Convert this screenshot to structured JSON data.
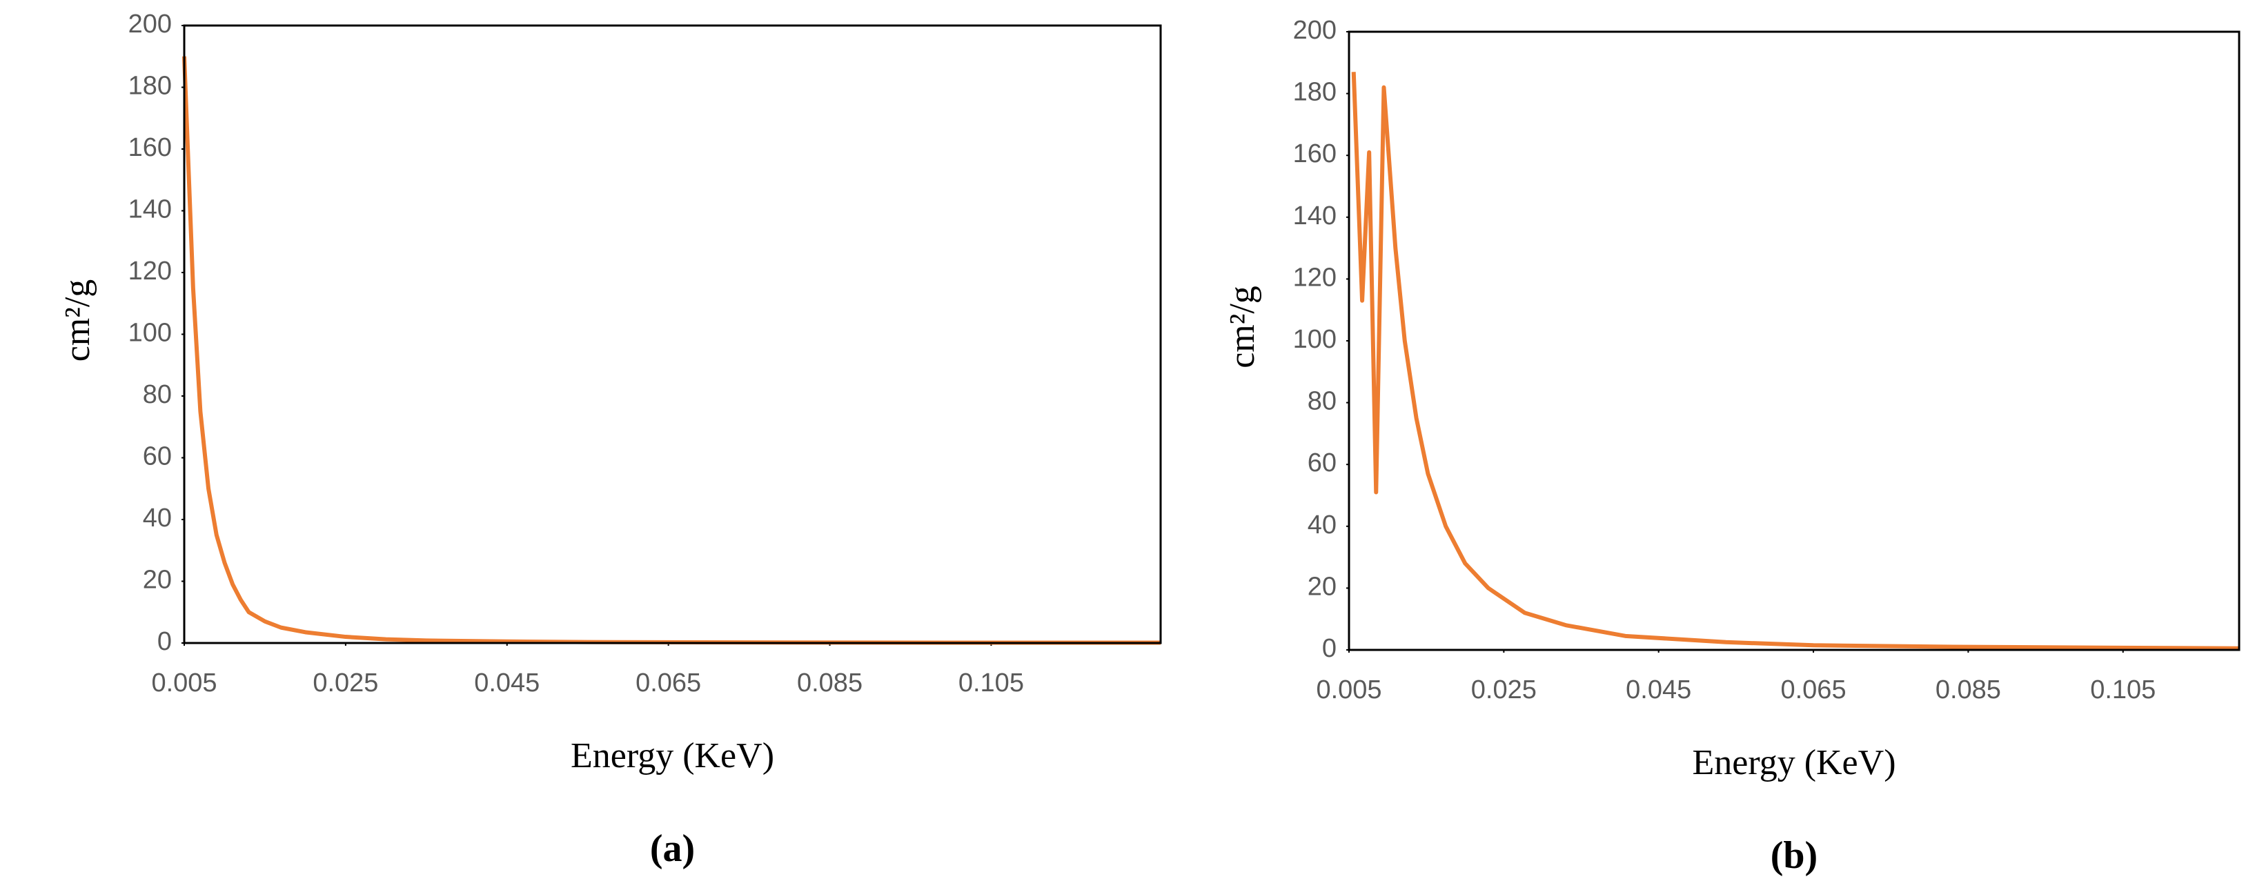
{
  "chart_data": [
    {
      "type": "line",
      "caption": "(a)",
      "x_label": "Energy (KeV)",
      "y_label": "cm²/g",
      "xlim": [
        0.005,
        0.126
      ],
      "xticks": [
        0.005,
        0.025,
        0.045,
        0.065,
        0.085,
        0.105
      ],
      "ylim": [
        0,
        200
      ],
      "yticks": [
        0,
        20,
        40,
        60,
        80,
        100,
        120,
        140,
        160,
        180,
        200
      ],
      "series": [
        {
          "color": "#ed7d31",
          "x": [
            0.005,
            0.0061,
            0.007,
            0.008,
            0.009,
            0.01,
            0.011,
            0.012,
            0.013,
            0.015,
            0.017,
            0.02,
            0.025,
            0.03,
            0.035,
            0.045,
            0.055,
            0.075,
            0.1,
            0.126
          ],
          "values": [
            190,
            115,
            75,
            50,
            35,
            26,
            19,
            14,
            10,
            7,
            5,
            3.5,
            2,
            1.2,
            0.8,
            0.5,
            0.3,
            0.2,
            0.1,
            0.1
          ]
        }
      ]
    },
    {
      "type": "line",
      "caption": "(b)",
      "x_label": "Energy (KeV)",
      "y_label": "cm²/g",
      "xlim": [
        0.005,
        0.12
      ],
      "xticks": [
        0.005,
        0.025,
        0.045,
        0.065,
        0.085,
        0.105
      ],
      "ylim": [
        0,
        200
      ],
      "yticks": [
        0,
        20,
        40,
        60,
        80,
        100,
        120,
        140,
        160,
        180,
        200
      ],
      "series": [
        {
          "color": "#ed7d31",
          "x": [
            0.0056,
            0.0067,
            0.0076,
            0.0085,
            0.0095,
            0.011,
            0.0122,
            0.0137,
            0.0152,
            0.0175,
            0.02,
            0.023,
            0.0277,
            0.033,
            0.0407,
            0.0537,
            0.065,
            0.083,
            0.12
          ],
          "values": [
            187,
            113,
            161,
            51,
            182,
            130,
            100,
            75,
            57,
            40,
            28,
            20,
            12,
            8,
            4.5,
            2.5,
            1.5,
            1,
            0.5
          ]
        }
      ]
    }
  ]
}
